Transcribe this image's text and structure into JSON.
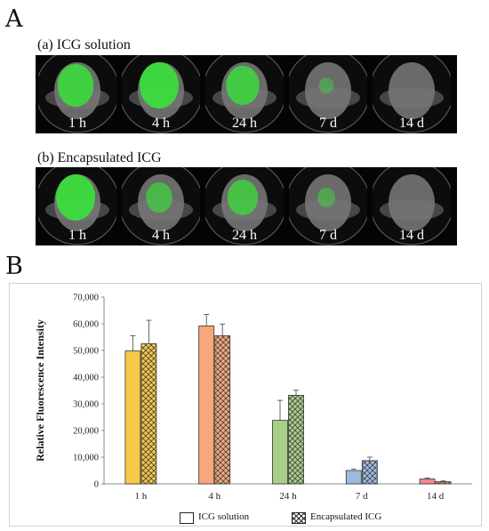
{
  "panel_a": {
    "letter": "A",
    "row_a": {
      "title": "(a) ICG solution",
      "labels": [
        "1 h",
        "4 h",
        "24 h",
        "7 d",
        "14 d"
      ],
      "green_intensity": [
        0.9,
        1.0,
        0.8,
        0.15,
        0.0
      ]
    },
    "row_b": {
      "title": "(b) Encapsulated ICG",
      "labels": [
        "1 h",
        "4 h",
        "24 h",
        "7 d",
        "14 d"
      ],
      "green_intensity": [
        1.0,
        0.55,
        0.7,
        0.25,
        0.0
      ]
    }
  },
  "panel_b": {
    "letter": "B"
  },
  "chart_data": {
    "type": "bar",
    "title": "",
    "xlabel": "",
    "ylabel": "Relative Fluorescence Intensity",
    "ylim": [
      0,
      70000
    ],
    "yticks": [
      "0",
      "10,000",
      "20,000",
      "30,000",
      "40,000",
      "50,000",
      "60,000",
      "70,000"
    ],
    "categories": [
      "1 h",
      "4 h",
      "24 h",
      "7 d",
      "14 d"
    ],
    "category_colors": [
      "#f7c948",
      "#f8a77a",
      "#a8cf86",
      "#9dbbe0",
      "#f2898a"
    ],
    "grid": false,
    "legend_position": "bottom",
    "series": [
      {
        "name": "ICG solution",
        "pattern": "solid",
        "values": [
          49800,
          59200,
          23800,
          5000,
          1800
        ],
        "errors": [
          5700,
          4300,
          7500,
          600,
          400
        ]
      },
      {
        "name": "Encapsulated ICG",
        "pattern": "crosshatch",
        "values": [
          52500,
          55500,
          33200,
          8700,
          800
        ],
        "errors": [
          8800,
          4400,
          1900,
          1300,
          300
        ]
      }
    ]
  }
}
